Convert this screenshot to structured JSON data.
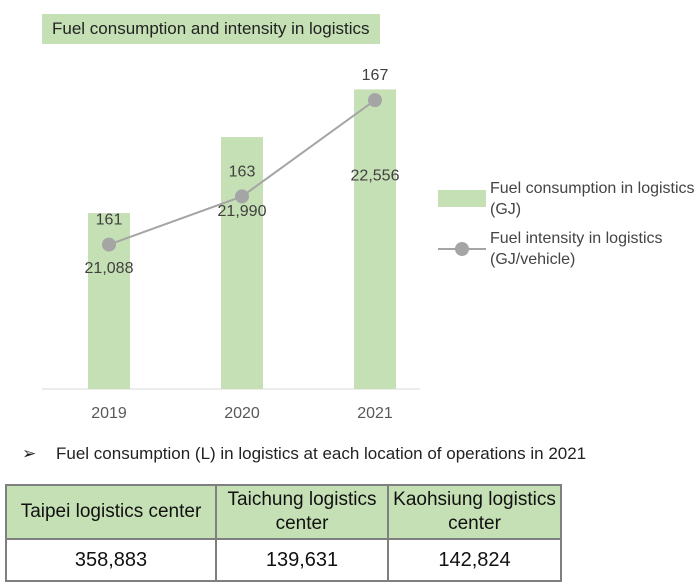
{
  "chart_data": {
    "type": "bar",
    "title": "Fuel consumption and intensity in logistics",
    "categories": [
      "2019",
      "2020",
      "2021"
    ],
    "series": [
      {
        "name": "Fuel consumption in logistics (GJ)",
        "type": "bar",
        "values": [
          21088,
          21990,
          22556
        ],
        "labels": [
          "21,088",
          "21,990",
          "22,556"
        ],
        "color": "#c5e0b4"
      },
      {
        "name": "Fuel intensity in logistics (GJ/vehicle)",
        "type": "line",
        "values": [
          161,
          163,
          167
        ],
        "labels": [
          "161",
          "163",
          "167"
        ],
        "color": "#a5a5a5"
      }
    ],
    "ylim_bar": [
      19000,
      23000
    ],
    "ylim_line": [
      155,
      169
    ],
    "legend_position": "right",
    "grid": false
  },
  "legend": {
    "bar_label": "Fuel consumption in logistics (GJ)",
    "line_label": "Fuel intensity in logistics (GJ/vehicle)"
  },
  "note": {
    "bullet": "➢",
    "text": "Fuel consumption (L) in logistics at each location of operations in 2021"
  },
  "table": {
    "headers": [
      "Taipei logistics center",
      "Taichung logistics center",
      "Kaohsiung logistics center"
    ],
    "values": [
      "358,883",
      "139,631",
      "142,824"
    ]
  }
}
